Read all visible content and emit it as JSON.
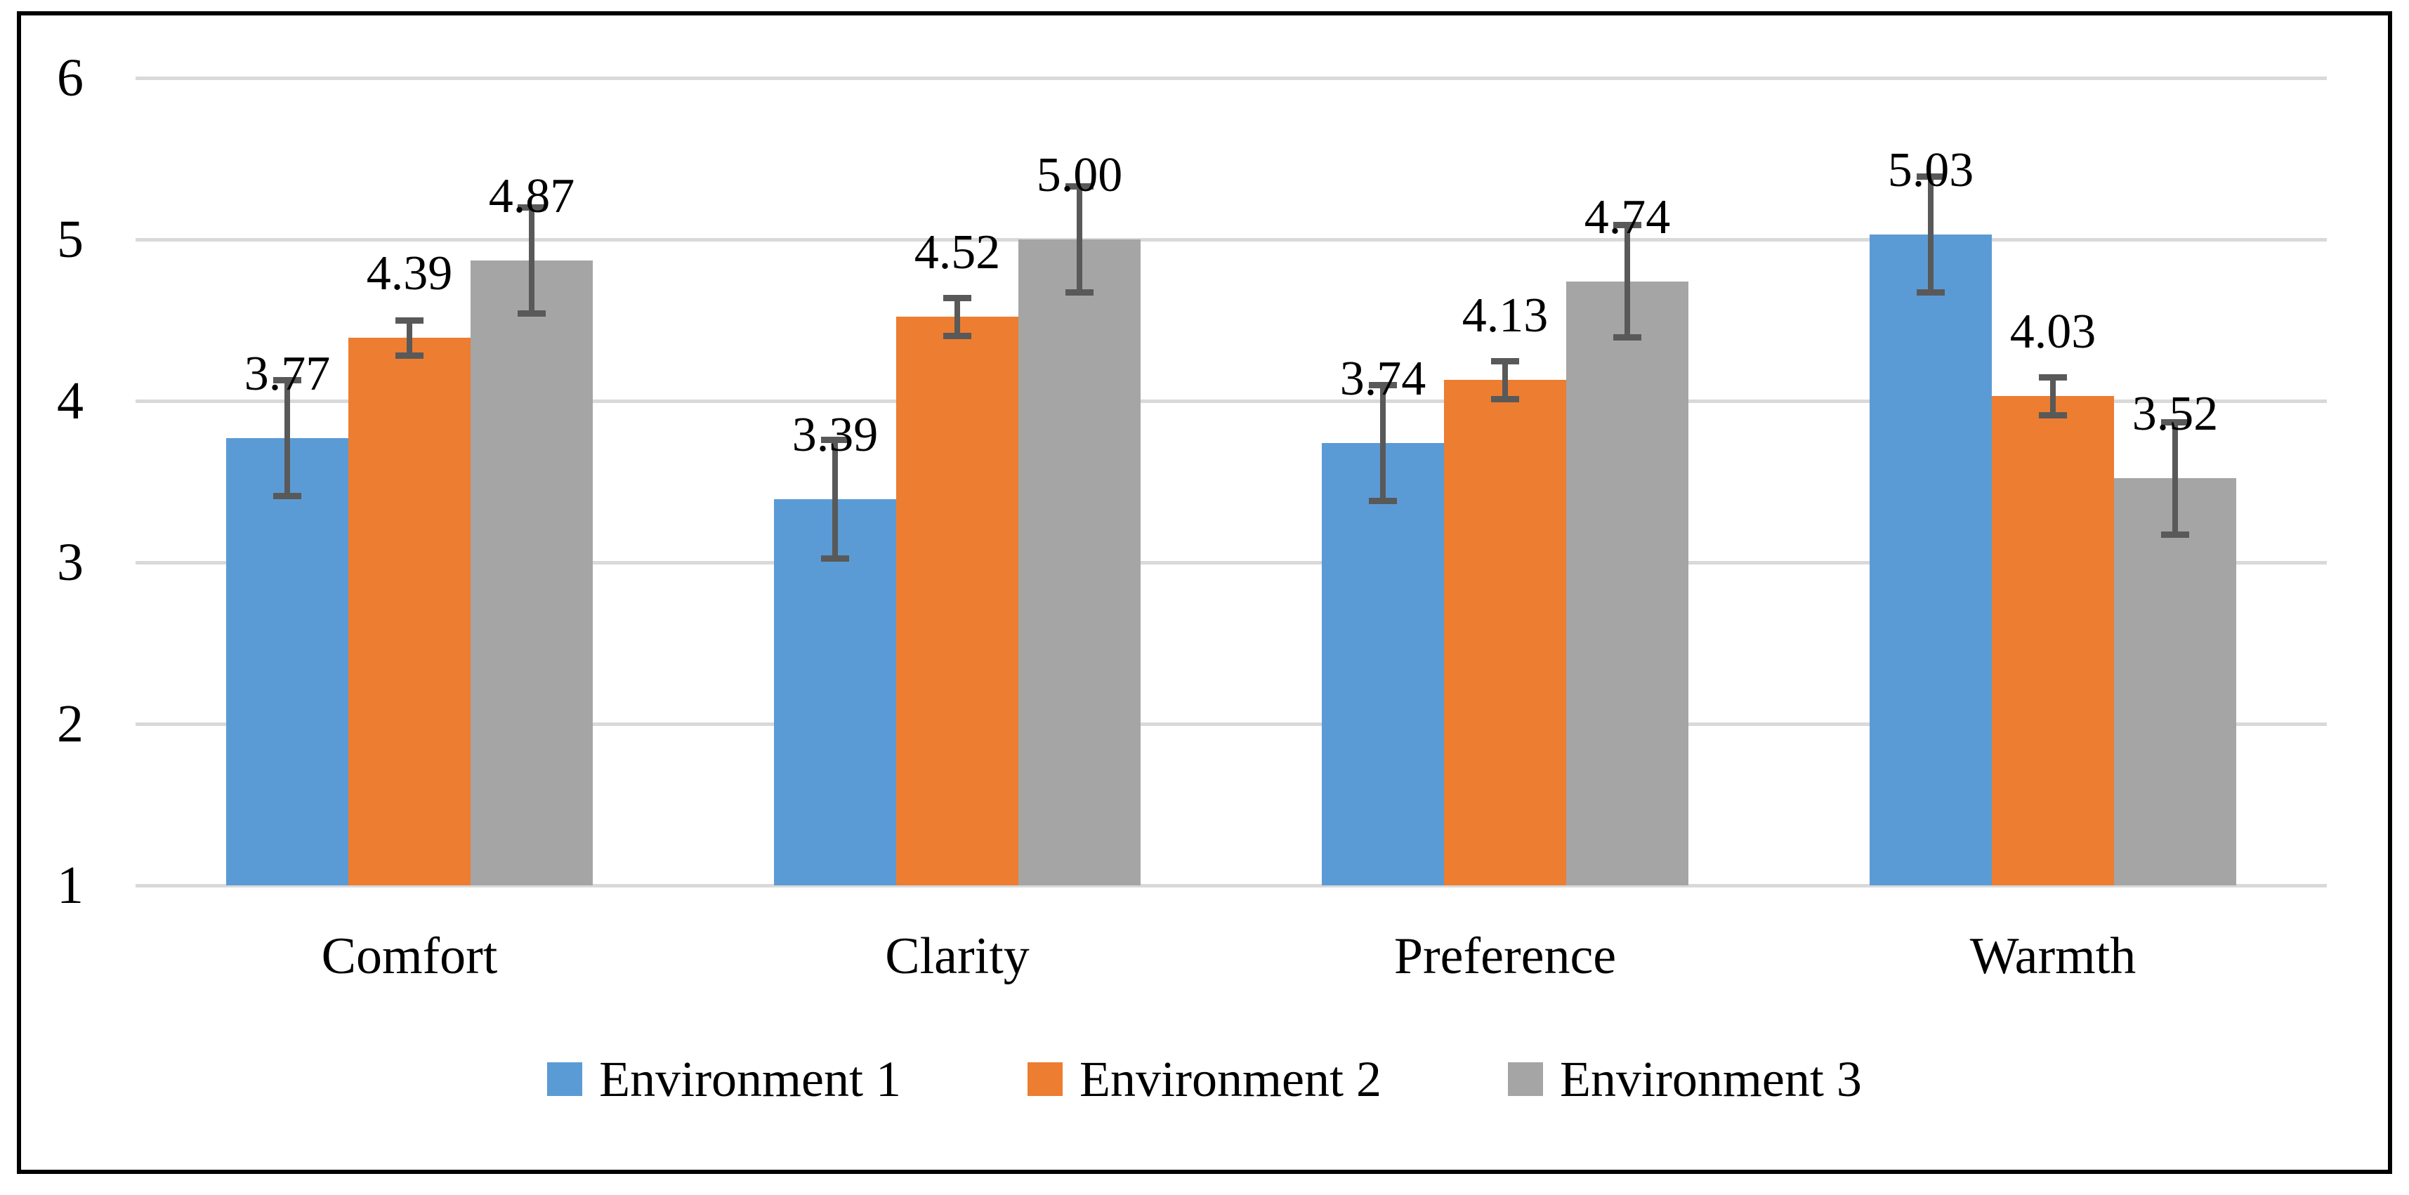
{
  "figure": {
    "background_color": "#ffffff",
    "border_color": "#000000",
    "gridline_color": "#d9d9d9",
    "error_bar_color": "#595959",
    "text_color": "#000000"
  },
  "chart_data": {
    "type": "bar",
    "title": "",
    "xlabel": "",
    "ylabel": "",
    "categories": [
      "Comfort",
      "Clarity",
      "Preference",
      "Warmth"
    ],
    "series": [
      {
        "name": "Environment 1",
        "color": "#5B9BD5",
        "values": [
          3.77,
          3.39,
          3.74,
          5.03
        ],
        "errors": [
          0.36,
          0.37,
          0.36,
          0.36
        ]
      },
      {
        "name": "Environment 2",
        "color": "#ED7D31",
        "values": [
          4.39,
          4.52,
          4.13,
          4.03
        ],
        "errors": [
          0.11,
          0.12,
          0.12,
          0.12
        ]
      },
      {
        "name": "Environment 3",
        "color": "#A5A5A5",
        "values": [
          4.87,
          5.0,
          4.74,
          3.52
        ],
        "errors": [
          0.33,
          0.33,
          0.35,
          0.35
        ]
      }
    ],
    "data_labels": [
      [
        "3.77",
        "3.39",
        "3.74",
        "5.03"
      ],
      [
        "4.39",
        "4.52",
        "4.13",
        "4.03"
      ],
      [
        "4.87",
        "5.00",
        "4.74",
        "3.52"
      ]
    ],
    "ylim": [
      1,
      6
    ],
    "yticks": [
      "6",
      "5",
      "4",
      "3",
      "2",
      "1"
    ],
    "ytick_values": [
      6,
      5,
      4,
      3,
      2,
      1
    ],
    "grid": true,
    "error_bars": true,
    "legend_position": "bottom",
    "legend_entries": [
      "Environment 1",
      "Environment 2",
      "Environment 3"
    ]
  }
}
